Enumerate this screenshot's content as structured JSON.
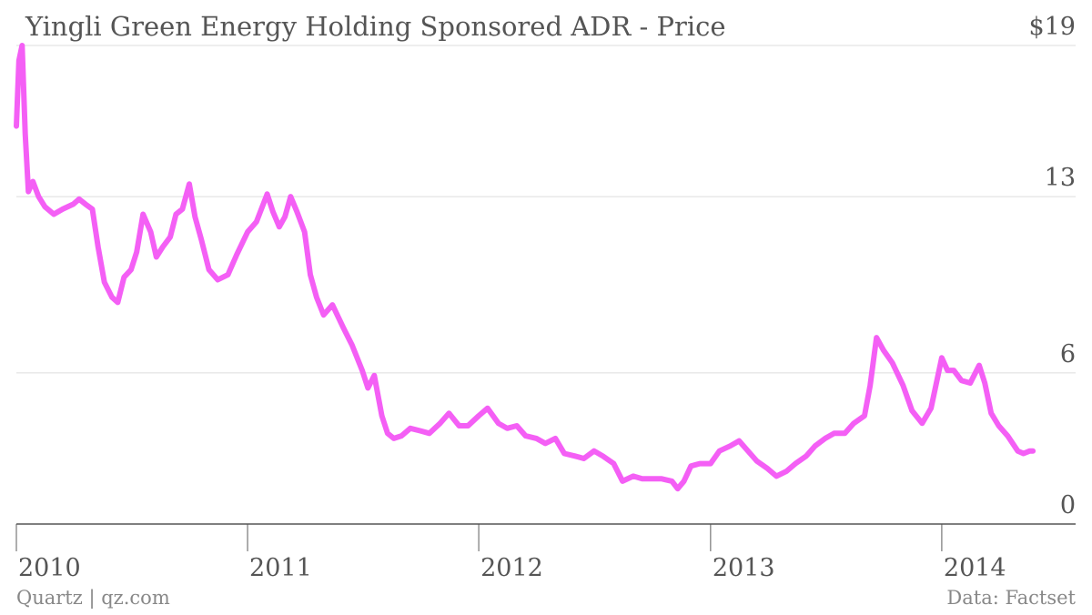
{
  "chart_data": {
    "type": "line",
    "title": "Yingli Green Energy Holding Sponsored ADR - Price",
    "xlabel": "",
    "ylabel": "",
    "x_ticks": [
      "2010",
      "2011",
      "2012",
      "2013",
      "2014"
    ],
    "y_ticks": [
      "$19",
      "13",
      "6",
      "0"
    ],
    "ylim": [
      0,
      19
    ],
    "xlim": [
      "2010-01-01",
      "2014-06-01"
    ],
    "grid": true,
    "color": "#f45ff5",
    "series": [
      {
        "x": [
          "2010-01-01",
          "2010-01-05",
          "2010-01-10",
          "2010-01-15",
          "2010-01-20",
          "2010-01-27",
          "2010-02-05",
          "2010-02-15",
          "2010-03-01",
          "2010-03-15",
          "2010-04-01",
          "2010-04-10",
          "2010-04-20",
          "2010-05-01",
          "2010-05-10",
          "2010-05-20",
          "2010-06-01",
          "2010-06-10",
          "2010-06-20",
          "2010-07-01",
          "2010-07-10",
          "2010-07-20",
          "2010-08-01",
          "2010-08-10",
          "2010-08-20",
          "2010-09-01",
          "2010-09-10",
          "2010-09-20",
          "2010-10-01",
          "2010-10-10",
          "2010-10-20",
          "2010-11-01",
          "2010-11-15",
          "2010-12-01",
          "2010-12-15",
          "2011-01-01",
          "2011-01-15",
          "2011-02-01",
          "2011-02-10",
          "2011-02-20",
          "2011-03-01",
          "2011-03-10",
          "2011-03-20",
          "2011-04-01",
          "2011-04-10",
          "2011-04-20",
          "2011-05-01",
          "2011-05-15",
          "2011-06-01",
          "2011-06-15",
          "2011-07-01",
          "2011-07-10",
          "2011-07-20",
          "2011-08-01",
          "2011-08-10",
          "2011-08-20",
          "2011-09-01",
          "2011-09-15",
          "2011-10-01",
          "2011-10-15",
          "2011-11-01",
          "2011-11-15",
          "2011-12-01",
          "2011-12-15",
          "2012-01-01",
          "2012-01-15",
          "2012-02-01",
          "2012-02-15",
          "2012-03-01",
          "2012-03-15",
          "2012-04-01",
          "2012-04-15",
          "2012-05-01",
          "2012-05-15",
          "2012-06-01",
          "2012-06-15",
          "2012-07-01",
          "2012-07-15",
          "2012-08-01",
          "2012-08-15",
          "2012-09-01",
          "2012-09-15",
          "2012-10-01",
          "2012-10-15",
          "2012-11-01",
          "2012-11-10",
          "2012-11-20",
          "2012-12-01",
          "2012-12-15",
          "2013-01-01",
          "2013-01-15",
          "2013-02-01",
          "2013-02-15",
          "2013-03-01",
          "2013-03-15",
          "2013-04-01",
          "2013-04-15",
          "2013-05-01",
          "2013-05-15",
          "2013-06-01",
          "2013-06-15",
          "2013-07-01",
          "2013-07-15",
          "2013-08-01",
          "2013-08-15",
          "2013-09-01",
          "2013-09-10",
          "2013-09-20",
          "2013-10-01",
          "2013-10-15",
          "2013-11-01",
          "2013-11-15",
          "2013-12-01",
          "2013-12-15",
          "2014-01-01",
          "2014-01-10",
          "2014-01-20",
          "2014-02-01",
          "2014-02-15",
          "2014-03-01",
          "2014-03-10",
          "2014-03-20",
          "2014-04-01",
          "2014-04-15",
          "2014-05-01",
          "2014-05-10",
          "2014-05-20",
          "2014-05-25"
        ],
        "values": [
          15.8,
          18.4,
          19.0,
          15.5,
          13.2,
          13.6,
          13.0,
          12.6,
          12.3,
          12.5,
          12.7,
          12.9,
          12.7,
          12.5,
          11.0,
          9.6,
          9.0,
          8.8,
          9.8,
          10.1,
          10.8,
          12.3,
          11.6,
          10.6,
          11.0,
          11.4,
          12.3,
          12.5,
          13.5,
          12.2,
          11.3,
          10.1,
          9.7,
          9.9,
          10.7,
          11.6,
          12.0,
          13.1,
          12.4,
          11.8,
          12.2,
          13.0,
          12.4,
          11.6,
          9.9,
          9.0,
          8.3,
          8.7,
          7.8,
          7.1,
          6.1,
          5.4,
          5.9,
          4.3,
          3.6,
          3.4,
          3.5,
          3.8,
          3.7,
          3.6,
          4.0,
          4.4,
          3.9,
          3.9,
          4.3,
          4.6,
          4.0,
          3.8,
          3.9,
          3.5,
          3.4,
          3.2,
          3.4,
          2.8,
          2.7,
          2.6,
          2.9,
          2.7,
          2.4,
          1.7,
          1.9,
          1.8,
          1.8,
          1.8,
          1.7,
          1.4,
          1.7,
          2.3,
          2.4,
          2.4,
          2.9,
          3.1,
          3.3,
          2.9,
          2.5,
          2.2,
          1.9,
          2.1,
          2.4,
          2.7,
          3.1,
          3.4,
          3.6,
          3.6,
          4.0,
          4.3,
          5.5,
          7.4,
          6.9,
          6.4,
          5.5,
          4.5,
          4.0,
          4.6,
          6.6,
          6.1,
          6.1,
          5.7,
          5.6,
          6.3,
          5.6,
          4.4,
          3.9,
          3.5,
          2.9,
          2.8,
          2.9,
          2.9
        ]
      }
    ]
  },
  "footer": {
    "source_left": "Quartz | qz.com",
    "source_right": "Data: Factset"
  }
}
